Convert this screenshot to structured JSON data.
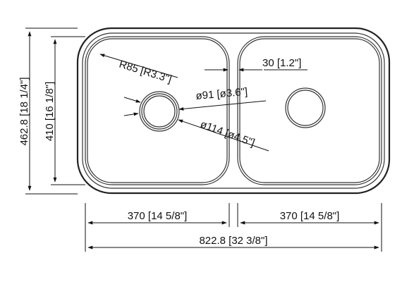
{
  "dimensions": {
    "overall_height": "462.8 [18 1/4\"]",
    "bowl_height": "410 [16 1/8\"]",
    "corner_radius": "R85 [R3.3\"]",
    "divider_width": "30 [1.2\"]",
    "drain_diameter": "ø91 [ø3.6\"]",
    "drain_outer_diameter": "ø114 [ø4.5\"]",
    "left_bowl_width": "370 [14 5/8\"]",
    "right_bowl_width": "370 [14 5/8\"]",
    "overall_width": "822.8 [32 3/8\"]"
  }
}
